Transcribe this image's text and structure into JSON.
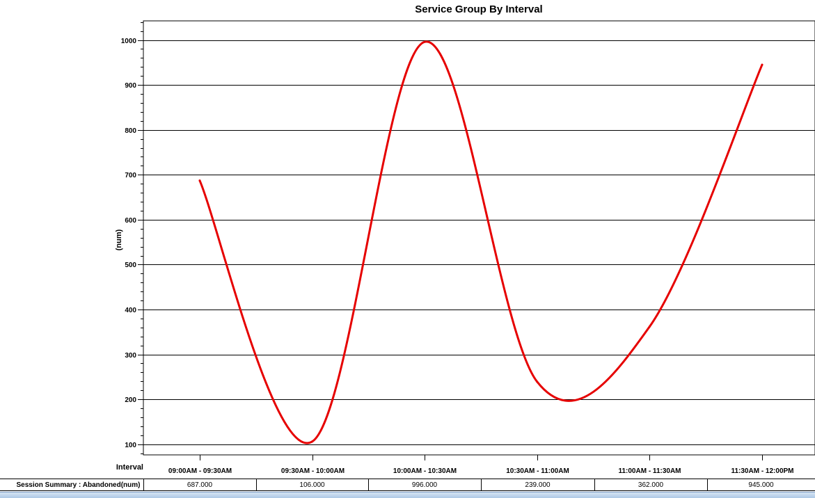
{
  "chart_data": {
    "type": "line",
    "title": "Service Group By Interval",
    "ylabel": "(num)",
    "xlabel": "Interval",
    "ylim": [
      70,
      1040
    ],
    "yticks": [
      100,
      200,
      300,
      400,
      500,
      600,
      700,
      800,
      900,
      1000
    ],
    "grid": true,
    "categories": [
      "09:00AM - 09:30AM",
      "09:30AM - 10:00AM",
      "10:00AM - 10:30AM",
      "10:30AM - 11:00AM",
      "11:00AM - 11:30AM",
      "11:30AM - 12:00PM"
    ],
    "series": [
      {
        "color": "#e60000",
        "values": [
          687,
          106,
          996,
          239,
          362,
          945
        ]
      }
    ]
  },
  "summary": {
    "row_label": "Session Summary : Abandoned(num)",
    "values": [
      "687.000",
      "106.000",
      "996.000",
      "239.000",
      "362.000",
      "945.000"
    ]
  }
}
